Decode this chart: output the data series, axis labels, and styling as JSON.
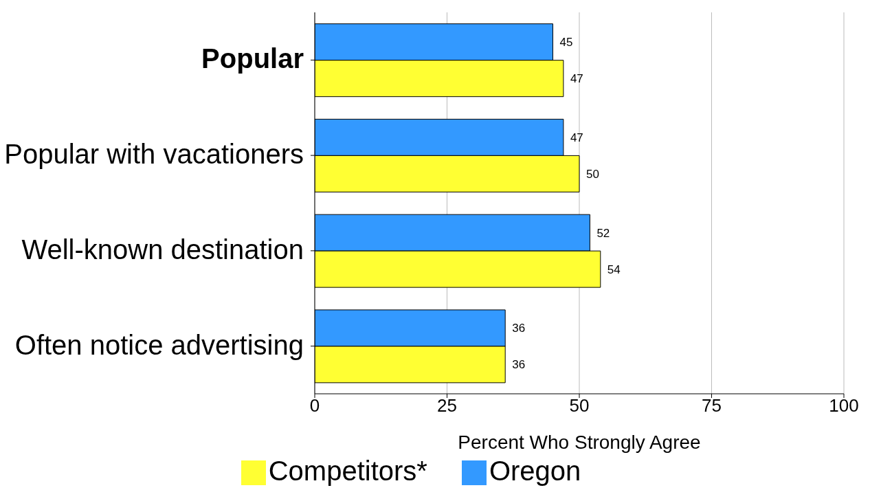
{
  "chart_data": {
    "type": "bar",
    "orientation": "horizontal",
    "xlabel": "Percent Who Strongly Agree",
    "categories": [
      "Popular",
      "Popular with vacationers",
      "Well-known destination",
      "Often notice advertising"
    ],
    "series": [
      {
        "name": "Oregon",
        "color": "#3399ff",
        "values": [
          45,
          47,
          52,
          36
        ]
      },
      {
        "name": "Competitors*",
        "color": "#ffff33",
        "values": [
          47,
          50,
          54,
          36
        ]
      }
    ],
    "xlim": [
      0,
      100
    ],
    "xticks": [
      0,
      25,
      50,
      75,
      100
    ],
    "grid": "x",
    "legend": "bottom",
    "data_labels": true
  }
}
